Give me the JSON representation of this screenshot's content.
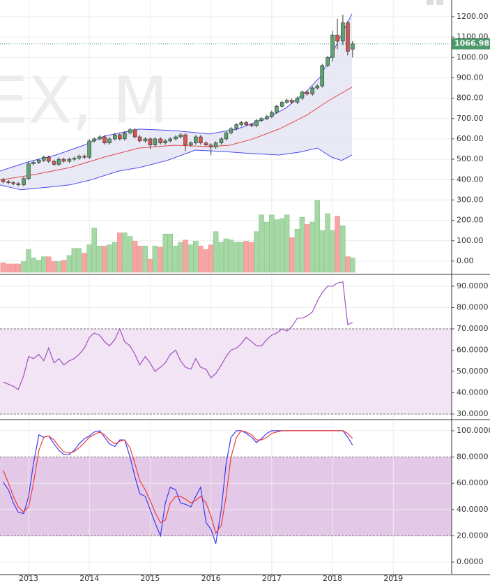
{
  "chart_data": [
    {
      "type": "candlestick",
      "watermark": "EX, M",
      "x": [
        2012.58,
        2012.67,
        2012.75,
        2012.83,
        2012.92,
        2013,
        2013.08,
        2013.17,
        2013.25,
        2013.33,
        2013.42,
        2013.5,
        2013.58,
        2013.67,
        2013.75,
        2013.83,
        2013.92,
        2014,
        2014.08,
        2014.17,
        2014.25,
        2014.33,
        2014.42,
        2014.5,
        2014.58,
        2014.67,
        2014.75,
        2014.83,
        2014.92,
        2015,
        2015.08,
        2015.17,
        2015.25,
        2015.33,
        2015.42,
        2015.5,
        2015.58,
        2015.67,
        2015.75,
        2015.83,
        2015.92,
        2016,
        2016.08,
        2016.17,
        2016.25,
        2016.33,
        2016.42,
        2016.5,
        2016.58,
        2016.67,
        2016.75,
        2016.83,
        2016.92,
        2017,
        2017.08,
        2017.17,
        2017.25,
        2017.33,
        2017.42,
        2017.5,
        2017.58,
        2017.67,
        2017.75,
        2017.83,
        2017.92,
        2018,
        2018.08,
        2018.17,
        2018.25,
        2018.33
      ],
      "open": [
        400,
        390,
        385,
        380,
        375,
        405,
        478,
        485,
        495,
        510,
        490,
        475,
        500,
        490,
        500,
        505,
        515,
        510,
        590,
        600,
        610,
        580,
        600,
        620,
        600,
        630,
        645,
        610,
        590,
        600,
        570,
        600,
        580,
        590,
        600,
        610,
        620,
        570,
        580,
        610,
        580,
        570,
        560,
        580,
        600,
        630,
        650,
        670,
        680,
        670,
        665,
        690,
        700,
        710,
        730,
        760,
        780,
        790,
        780,
        800,
        830,
        820,
        850,
        860,
        960,
        1000,
        1110,
        1080,
        1170,
        1040
      ],
      "high": [
        408,
        398,
        393,
        388,
        413,
        486,
        493,
        503,
        518,
        518,
        498,
        508,
        508,
        508,
        513,
        523,
        523,
        598,
        608,
        618,
        618,
        608,
        628,
        628,
        638,
        653,
        653,
        618,
        608,
        608,
        608,
        608,
        598,
        608,
        618,
        628,
        628,
        588,
        618,
        618,
        588,
        578,
        588,
        608,
        638,
        658,
        678,
        688,
        688,
        678,
        698,
        708,
        718,
        738,
        768,
        788,
        798,
        798,
        808,
        838,
        838,
        858,
        868,
        968,
        1008,
        1130,
        1190,
        1210,
        1180,
        1080
      ],
      "low": [
        382,
        377,
        372,
        367,
        367,
        397,
        470,
        477,
        487,
        482,
        467,
        467,
        482,
        482,
        492,
        497,
        502,
        502,
        582,
        592,
        572,
        572,
        592,
        592,
        592,
        622,
        602,
        582,
        582,
        550,
        562,
        572,
        572,
        582,
        592,
        602,
        540,
        562,
        572,
        572,
        562,
        520,
        552,
        572,
        592,
        622,
        642,
        662,
        662,
        657,
        657,
        682,
        692,
        702,
        722,
        752,
        772,
        772,
        772,
        792,
        812,
        812,
        842,
        852,
        952,
        980,
        1040,
        1060,
        1010,
        1000
      ],
      "close": [
        390,
        385,
        380,
        375,
        405,
        478,
        485,
        495,
        510,
        490,
        475,
        500,
        490,
        500,
        505,
        515,
        510,
        590,
        600,
        610,
        580,
        600,
        620,
        600,
        630,
        645,
        610,
        590,
        600,
        570,
        600,
        580,
        590,
        600,
        610,
        620,
        570,
        580,
        610,
        580,
        570,
        560,
        580,
        600,
        630,
        650,
        670,
        680,
        670,
        665,
        690,
        700,
        710,
        730,
        760,
        780,
        790,
        780,
        800,
        830,
        820,
        850,
        860,
        960,
        1000,
        1110,
        1080,
        1170,
        1030,
        1066.98
      ],
      "colors": {
        "up": "#5aa36e",
        "down": "#d9534f",
        "wick": "#333333",
        "last": "#4c9a6a"
      },
      "volume": {
        "axis": "y2",
        "up_color": "#a6d8a6",
        "down_color": "#f7a4a4",
        "values": [
          40,
          35,
          35,
          35,
          45,
          95,
          60,
          50,
          65,
          65,
          45,
          45,
          50,
          70,
          100,
          100,
          80,
          115,
          185,
          110,
          110,
          115,
          125,
          165,
          165,
          150,
          130,
          110,
          110,
          55,
          110,
          105,
          160,
          160,
          110,
          125,
          135,
          115,
          130,
          110,
          95,
          115,
          170,
          125,
          140,
          135,
          125,
          125,
          130,
          125,
          170,
          240,
          210,
          240,
          220,
          225,
          240,
          145,
          180,
          230,
          200,
          210,
          300,
          175,
          245,
          175,
          235,
          195,
          65,
          60
        ]
      },
      "overlays": [
        {
          "color": "#4a4af0",
          "x": [
            2012.53,
            2012.99,
            2013.45,
            2013.91,
            2014.25,
            2014.82,
            2015.4,
            2015.97,
            2016.43,
            2016.89,
            2017.23,
            2017.58,
            2017.8,
            2018.03,
            2018.32
          ],
          "values": [
            442,
            487,
            521,
            569,
            614,
            648,
            641,
            624,
            648,
            699,
            751,
            836,
            905,
            1042,
            1214
          ]
        },
        {
          "color": "#e04848",
          "x": [
            2012.53,
            2013.1,
            2013.68,
            2014.25,
            2014.82,
            2015.4,
            2015.97,
            2016.31,
            2016.66,
            2017.12,
            2017.58,
            2017.92,
            2018.32
          ],
          "values": [
            398,
            425,
            459,
            511,
            555,
            569,
            562,
            569,
            597,
            648,
            717,
            785,
            854
          ]
        },
        {
          "color": "#4a4af0",
          "x": [
            2012.53,
            2012.87,
            2013.33,
            2013.68,
            2014.02,
            2014.48,
            2014.82,
            2015.28,
            2015.74,
            2016.2,
            2016.66,
            2017.12,
            2017.46,
            2017.75,
            2017.98,
            2018.15,
            2018.32
          ],
          "values": [
            374,
            350,
            363,
            374,
            398,
            442,
            459,
            494,
            545,
            538,
            528,
            521,
            535,
            555,
            511,
            494,
            521
          ]
        }
      ],
      "band_fill": "#e4e4f4",
      "xlim": [
        2012.53,
        2019.96
      ],
      "ylim": [
        -62,
        1282
      ],
      "y2lim": [
        -6,
        1139
      ],
      "grid": true,
      "yticks": [
        {
          "value": 0,
          "label": "0.00"
        },
        {
          "value": 100,
          "label": "100.00"
        },
        {
          "value": 200,
          "label": "200.00"
        },
        {
          "value": 300,
          "label": "300.00"
        },
        {
          "value": 400,
          "label": "400.00"
        },
        {
          "value": 500,
          "label": "500.00"
        },
        {
          "value": 600,
          "label": "600.00"
        },
        {
          "value": 700,
          "label": "700.00"
        },
        {
          "value": 800,
          "label": "800.00"
        },
        {
          "value": 900,
          "label": "900.00"
        },
        {
          "value": 1000,
          "label": "1000.00"
        },
        {
          "value": 1100,
          "label": "1100.00"
        },
        {
          "value": 1200,
          "label": "1200.00"
        }
      ]
    },
    {
      "type": "line",
      "x": [
        2012.58,
        2012.67,
        2012.75,
        2012.83,
        2012.92,
        2013,
        2013.08,
        2013.17,
        2013.25,
        2013.33,
        2013.42,
        2013.5,
        2013.58,
        2013.67,
        2013.75,
        2013.83,
        2013.92,
        2014,
        2014.08,
        2014.17,
        2014.25,
        2014.33,
        2014.42,
        2014.5,
        2014.58,
        2014.67,
        2014.75,
        2014.83,
        2014.92,
        2015,
        2015.08,
        2015.17,
        2015.25,
        2015.33,
        2015.42,
        2015.5,
        2015.58,
        2015.67,
        2015.75,
        2015.83,
        2015.92,
        2016,
        2016.08,
        2016.17,
        2016.25,
        2016.33,
        2016.42,
        2016.5,
        2016.58,
        2016.67,
        2016.75,
        2016.83,
        2016.92,
        2017,
        2017.08,
        2017.17,
        2017.25,
        2017.33,
        2017.42,
        2017.5,
        2017.58,
        2017.67,
        2017.75,
        2017.83,
        2017.92,
        2018,
        2018.08,
        2018.17,
        2018.25,
        2018.33
      ],
      "series": [
        {
          "color": "#a050c0",
          "values": [
            45,
            44,
            43,
            41.5,
            48,
            57,
            56,
            58,
            55,
            61,
            54,
            56,
            53,
            55,
            56,
            58,
            61,
            66,
            68,
            67,
            64,
            62,
            65,
            70,
            64,
            62,
            58,
            53,
            57,
            54,
            50,
            52,
            54,
            58,
            60,
            55,
            52,
            51,
            56,
            52,
            51,
            47,
            49,
            53,
            57,
            60,
            61,
            63,
            66,
            64,
            62,
            62,
            65,
            67,
            68,
            70,
            69,
            71,
            75,
            75,
            76,
            78,
            83,
            87,
            90,
            90,
            91.5,
            92,
            72,
            73
          ]
        }
      ],
      "levels": [
        30,
        70
      ],
      "band_color": "#f2e4f4",
      "xlim": [
        2012.53,
        2019.96
      ],
      "ylim": [
        27.7,
        94.9
      ],
      "grid": true,
      "yticks": [
        {
          "value": 30,
          "label": "30.0000"
        },
        {
          "value": 40,
          "label": "40.0000"
        },
        {
          "value": 50,
          "label": "50.0000"
        },
        {
          "value": 60,
          "label": "60.0000"
        },
        {
          "value": 70,
          "label": "70.0000"
        },
        {
          "value": 80,
          "label": "80.0000"
        },
        {
          "value": 90,
          "label": "90.0000"
        }
      ]
    },
    {
      "type": "line",
      "x": [
        2012.58,
        2012.67,
        2012.75,
        2012.83,
        2012.92,
        2013,
        2013.08,
        2013.17,
        2013.25,
        2013.33,
        2013.42,
        2013.5,
        2013.58,
        2013.67,
        2013.75,
        2013.83,
        2013.92,
        2014,
        2014.08,
        2014.17,
        2014.25,
        2014.33,
        2014.42,
        2014.5,
        2014.58,
        2014.67,
        2014.75,
        2014.83,
        2014.92,
        2015,
        2015.08,
        2015.17,
        2015.25,
        2015.33,
        2015.42,
        2015.5,
        2015.58,
        2015.67,
        2015.75,
        2015.83,
        2015.92,
        2016,
        2016.08,
        2016.17,
        2016.25,
        2016.33,
        2016.42,
        2016.5,
        2016.58,
        2016.67,
        2016.75,
        2016.83,
        2016.92,
        2017,
        2017.08,
        2017.17,
        2017.25,
        2017.33,
        2017.42,
        2017.5,
        2017.58,
        2017.67,
        2017.75,
        2017.83,
        2017.92,
        2018,
        2018.08,
        2018.17,
        2018.25,
        2018.33
      ],
      "series": [
        {
          "color": "#3a3af0",
          "values": [
            61,
            55,
            45,
            38,
            37,
            50,
            75,
            97,
            95,
            96,
            90,
            85,
            82,
            82,
            85,
            90,
            94,
            96,
            99,
            100,
            95,
            90,
            88,
            93,
            93,
            80,
            65,
            52,
            50,
            40,
            30,
            20,
            45,
            57,
            55,
            45,
            44,
            42,
            50,
            57,
            30,
            25,
            14,
            40,
            75,
            95,
            100,
            100,
            98,
            95,
            91,
            94,
            98,
            100,
            100,
            100,
            100,
            100,
            100,
            100,
            100,
            100,
            100,
            100,
            100,
            100,
            100,
            100,
            95,
            89
          ]
        },
        {
          "color": "#f03a3a",
          "values": [
            70,
            60,
            50,
            42,
            38,
            42,
            60,
            85,
            95,
            96,
            93,
            88,
            84,
            83,
            84,
            87,
            91,
            95,
            97,
            99,
            97,
            93,
            90,
            92,
            93,
            87,
            75,
            62,
            55,
            47,
            38,
            30,
            32,
            45,
            50,
            50,
            48,
            45,
            47,
            50,
            45,
            35,
            22,
            28,
            50,
            80,
            95,
            100,
            99,
            97,
            93,
            93,
            95,
            98,
            99,
            100,
            100,
            100,
            100,
            100,
            100,
            100,
            100,
            100,
            100,
            100,
            100,
            100,
            98,
            94
          ]
        }
      ],
      "levels": [
        20,
        80
      ],
      "band_color": "#e4c8e8",
      "xlim": [
        2012.53,
        2019.96
      ],
      "ylim": [
        -9,
        107.4
      ],
      "grid": true,
      "xticks": [
        2013,
        2014,
        2015,
        2016,
        2017,
        2018,
        2019
      ],
      "yticks": [
        {
          "value": 0,
          "label": "0.0000"
        },
        {
          "value": 20,
          "label": "20.0000"
        },
        {
          "value": 40,
          "label": "40.0000"
        },
        {
          "value": 60,
          "label": "60.0000"
        },
        {
          "value": 80,
          "label": "80.0000"
        },
        {
          "value": 100,
          "label": "100.0000"
        }
      ]
    }
  ]
}
